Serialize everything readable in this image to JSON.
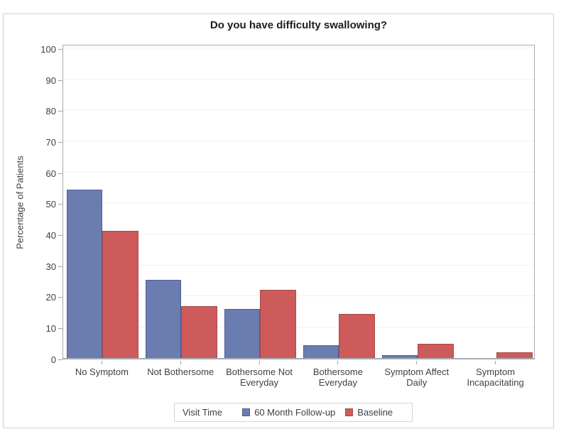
{
  "chart_data": {
    "type": "bar",
    "title": "Do you have difficulty swallowing?",
    "ylabel": "Percentage of Patients",
    "xlabel": "",
    "ylim": [
      0,
      100
    ],
    "ytick_step": 10,
    "grid": true,
    "legend_title": "Visit Time",
    "legend_position": "bottom",
    "categories": [
      "No Symptom",
      "Not Bothersome",
      "Bothersome Not\nEveryday",
      "Bothersome\nEveryday",
      "Symptom Affect\nDaily",
      "Symptom\nIncapacitating"
    ],
    "series": [
      {
        "name": "60 Month Follow-up",
        "color": "#6b7cb1",
        "border_color": "#4e5d95",
        "values": [
          54.4,
          25.3,
          15.9,
          4.1,
          1.0,
          0
        ]
      },
      {
        "name": "Baseline",
        "color": "#cd5b5b",
        "border_color": "#a94848",
        "values": [
          41.1,
          16.8,
          21.9,
          14.3,
          4.7,
          1.8
        ]
      }
    ]
  }
}
